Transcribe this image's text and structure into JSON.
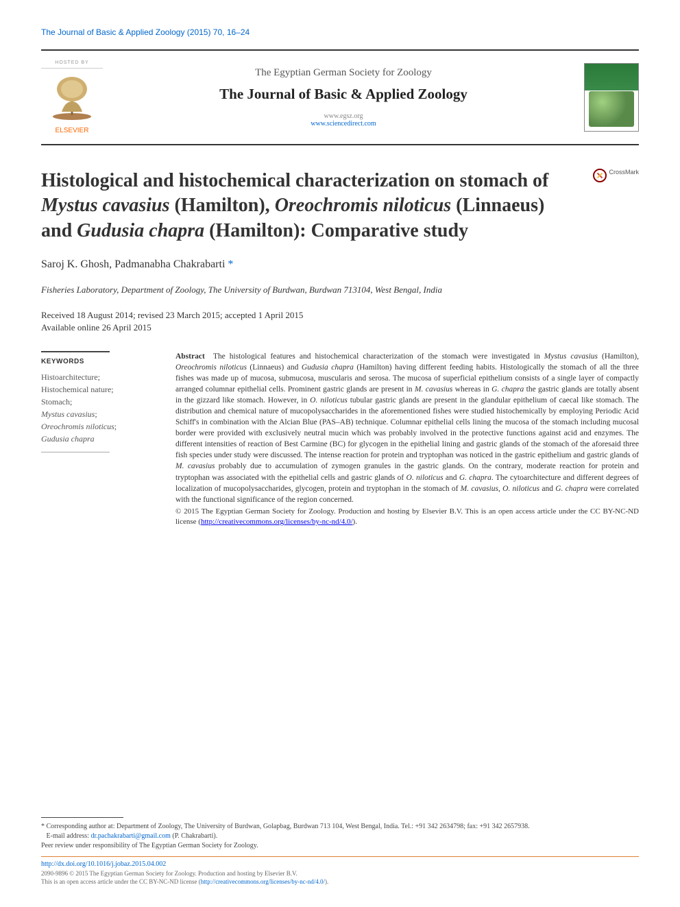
{
  "running_head": "The Journal of Basic & Applied Zoology (2015) 70, 16–24",
  "masthead": {
    "hosted_by_label": "HOSTED BY",
    "publisher_name": "ELSEVIER",
    "society": "The Egyptian German Society for Zoology",
    "journal": "The Journal of Basic & Applied Zoology",
    "link1": "www.egsz.org",
    "link2": "www.sciencedirect.com"
  },
  "crossmark_label": "CrossMark",
  "title_html": "Histological and histochemical characterization on stomach of <em>Mystus cavasius</em> (Hamilton), <em>Oreochromis niloticus</em> (Linnaeus) and <em>Gudusia chapra</em> (Hamilton): Comparative study",
  "authors_html": "Saroj K. Ghosh, Padmanabha Chakrabarti <span class=\"corr-star\">*</span>",
  "affiliation": "Fisheries Laboratory, Department of Zoology, The University of Burdwan, Burdwan 713104, West Bengal, India",
  "dates": {
    "history": "Received 18 August 2014; revised 23 March 2015; accepted 1 April 2015",
    "online": "Available online 26 April 2015"
  },
  "keywords": {
    "heading": "KEYWORDS",
    "items_html": "Histoarchitecture;<br>Histochemical nature;<br>Stomach;<br><em>Mystus cavasius</em>;<br><em>Oreochromis niloticus</em>;<br><em>Gudusia chapra</em>"
  },
  "abstract": {
    "label": "Abstract",
    "text_html": "The histological features and histochemical characterization of the stomach were investigated in <em>Mystus cavasius</em> (Hamilton), <em>Oreochromis niloticus</em> (Linnaeus) and <em>Gudusia chapra</em> (Hamilton) having different feeding habits. Histologically the stomach of all the three fishes was made up of mucosa, submucosa, muscularis and serosa. The mucosa of superficial epithelium consists of a single layer of compactly arranged columnar epithelial cells. Prominent gastric glands are present in <em>M. cavasius</em> whereas in <em>G. chapra</em> the gastric glands are totally absent in the gizzard like stomach. However, in <em>O. niloticus</em> tubular gastric glands are present in the glandular epithelium of caecal like stomach. The distribution and chemical nature of mucopolysaccharides in the aforementioned fishes were studied histochemically by employing Periodic Acid Schiff's in combination with the Alcian Blue (PAS–AB) technique. Columnar epithelial cells lining the mucosa of the stomach including mucosal border were provided with exclusively neutral mucin which was probably involved in the protective functions against acid and enzymes. The different intensities of reaction of Best Carmine (BC) for glycogen in the epithelial lining and gastric glands of the stomach of the aforesaid three fish species under study were discussed. The intense reaction for protein and tryptophan was noticed in the gastric epithelium and gastric glands of <em>M. cavasius</em> probably due to accumulation of zymogen granules in the gastric glands. On the contrary, moderate reaction for protein and tryptophan was associated with the epithelial cells and gastric glands of <em>O. niloticus</em> and <em>G. chapra</em>. The cytoarchitecture and different degrees of localization of mucopolysaccharides, glycogen, protein and tryptophan in the stomach of <em>M. cavasius</em>, <em>O. niloticus</em> and <em>G. chapra</em> were correlated with the functional significance of the region concerned.",
    "copyright_html": "© 2015 The Egyptian German Society for Zoology. Production and hosting by Elsevier B.V. This is an open access article under the CC BY-NC-ND license (<a href=\"#\">http://creativecommons.org/licenses/by-nc-nd/4.0/</a>)."
  },
  "footer": {
    "corr_html": "* Corresponding author at: Department of Zoology, The University of Burdwan, Golapbag, Burdwan 713 104, West Bengal, India. Tel.: +91 342 2634798; fax: +91 342 2657938.",
    "email_label": "E-mail address:",
    "email": "dr.pachakrabarti@gmail.com",
    "email_person": "(P. Chakrabarti).",
    "peer_review": "Peer review under responsibility of The Egyptian German Society for Zoology.",
    "doi": "http://dx.doi.org/10.1016/j.jobaz.2015.04.002",
    "issn_line_html": "2090-9896 © 2015 The Egyptian German Society for Zoology. Production and hosting by Elsevier B.V.<br>This is an open access article under the CC BY-NC-ND license (<a href=\"#\">http://creativecommons.org/licenses/by-nc-nd/4.0/</a>)."
  },
  "colors": {
    "link": "#0066cc",
    "elsevier_orange": "#ff6600",
    "rule_orange": "#e08030"
  }
}
